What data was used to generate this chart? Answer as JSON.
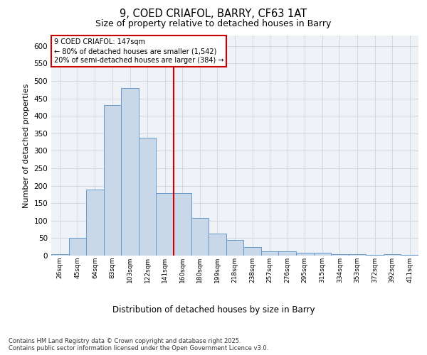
{
  "title_line1": "9, COED CRIAFOL, BARRY, CF63 1AT",
  "title_line2": "Size of property relative to detached houses in Barry",
  "xlabel": "Distribution of detached houses by size in Barry",
  "ylabel": "Number of detached properties",
  "categories": [
    "26sqm",
    "45sqm",
    "64sqm",
    "83sqm",
    "103sqm",
    "122sqm",
    "141sqm",
    "160sqm",
    "180sqm",
    "199sqm",
    "218sqm",
    "238sqm",
    "257sqm",
    "276sqm",
    "295sqm",
    "315sqm",
    "334sqm",
    "353sqm",
    "372sqm",
    "392sqm",
    "411sqm"
  ],
  "values": [
    5,
    50,
    190,
    430,
    480,
    337,
    178,
    178,
    108,
    62,
    45,
    25,
    12,
    12,
    8,
    8,
    5,
    5,
    3,
    5,
    3
  ],
  "bar_color": "#c8d8e8",
  "bar_edge_color": "#6699cc",
  "vline_x_index": 6.5,
  "vline_color": "#cc0000",
  "annotation_text": "9 COED CRIAFOL: 147sqm\n← 80% of detached houses are smaller (1,542)\n20% of semi-detached houses are larger (384) →",
  "annotation_box_color": "#cc0000",
  "ylim": [
    0,
    630
  ],
  "yticks": [
    0,
    50,
    100,
    150,
    200,
    250,
    300,
    350,
    400,
    450,
    500,
    550,
    600
  ],
  "footer_text": "Contains HM Land Registry data © Crown copyright and database right 2025.\nContains public sector information licensed under the Open Government Licence v3.0.",
  "bg_color": "#eef2f7",
  "grid_color": "#d0d8e0"
}
